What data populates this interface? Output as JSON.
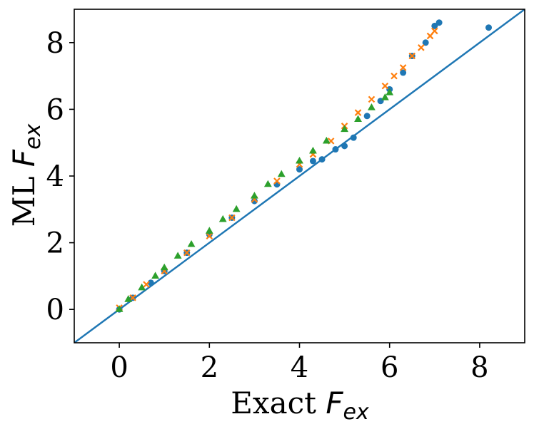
{
  "chart_data": {
    "type": "scatter",
    "title": "",
    "xlabel": {
      "prefix": "Exact",
      "symbol": "F",
      "subscript": "ex"
    },
    "ylabel": {
      "prefix": "ML",
      "symbol": "F",
      "subscript": "ex"
    },
    "xlim": [
      -1,
      9
    ],
    "ylim": [
      -1,
      9
    ],
    "xticks": [
      0,
      2,
      4,
      6,
      8
    ],
    "yticks": [
      0,
      2,
      4,
      6,
      8
    ],
    "xtick_labels": [
      "0",
      "2",
      "4",
      "6",
      "8"
    ],
    "ytick_labels": [
      "0",
      "2",
      "4",
      "6",
      "8"
    ],
    "grid": false,
    "legend": null,
    "reference_line": {
      "type": "y=x",
      "color": "#1f77b4"
    },
    "series": [
      {
        "marker": "circle",
        "color": "#1f77b4",
        "x": [
          0.0,
          0.3,
          0.7,
          1.0,
          1.5,
          2.0,
          2.5,
          3.0,
          3.5,
          4.0,
          4.3,
          4.5,
          4.8,
          5.0,
          5.2,
          5.5,
          5.8,
          6.0,
          6.3,
          6.5,
          6.8,
          7.0,
          7.1,
          8.2
        ],
        "y": [
          0.0,
          0.35,
          0.8,
          1.15,
          1.7,
          2.25,
          2.75,
          3.25,
          3.75,
          4.2,
          4.45,
          4.5,
          4.8,
          4.9,
          5.15,
          5.8,
          6.25,
          6.6,
          7.1,
          7.6,
          8.0,
          8.5,
          8.6,
          8.45
        ]
      },
      {
        "marker": "x",
        "color": "#ff7f0e",
        "x": [
          0.0,
          0.3,
          0.6,
          1.0,
          1.5,
          2.0,
          2.5,
          3.0,
          3.5,
          4.0,
          4.3,
          4.7,
          5.0,
          5.3,
          5.6,
          5.9,
          6.1,
          6.3,
          6.5,
          6.7,
          6.9,
          7.0
        ],
        "y": [
          0.05,
          0.35,
          0.75,
          1.15,
          1.7,
          2.2,
          2.75,
          3.3,
          3.85,
          4.35,
          4.65,
          5.05,
          5.5,
          5.9,
          6.3,
          6.7,
          7.0,
          7.25,
          7.6,
          7.85,
          8.2,
          8.35
        ]
      },
      {
        "marker": "triangle",
        "color": "#2ca02c",
        "x": [
          0.0,
          0.2,
          0.5,
          0.8,
          1.0,
          1.3,
          1.6,
          2.0,
          2.3,
          2.6,
          3.0,
          3.3,
          3.6,
          4.0,
          4.3,
          4.6,
          5.0,
          5.3,
          5.6,
          5.9,
          6.0
        ],
        "y": [
          0.0,
          0.3,
          0.65,
          1.0,
          1.25,
          1.6,
          1.95,
          2.35,
          2.7,
          3.0,
          3.4,
          3.75,
          4.05,
          4.45,
          4.75,
          5.05,
          5.4,
          5.7,
          6.05,
          6.35,
          6.5
        ]
      }
    ]
  }
}
